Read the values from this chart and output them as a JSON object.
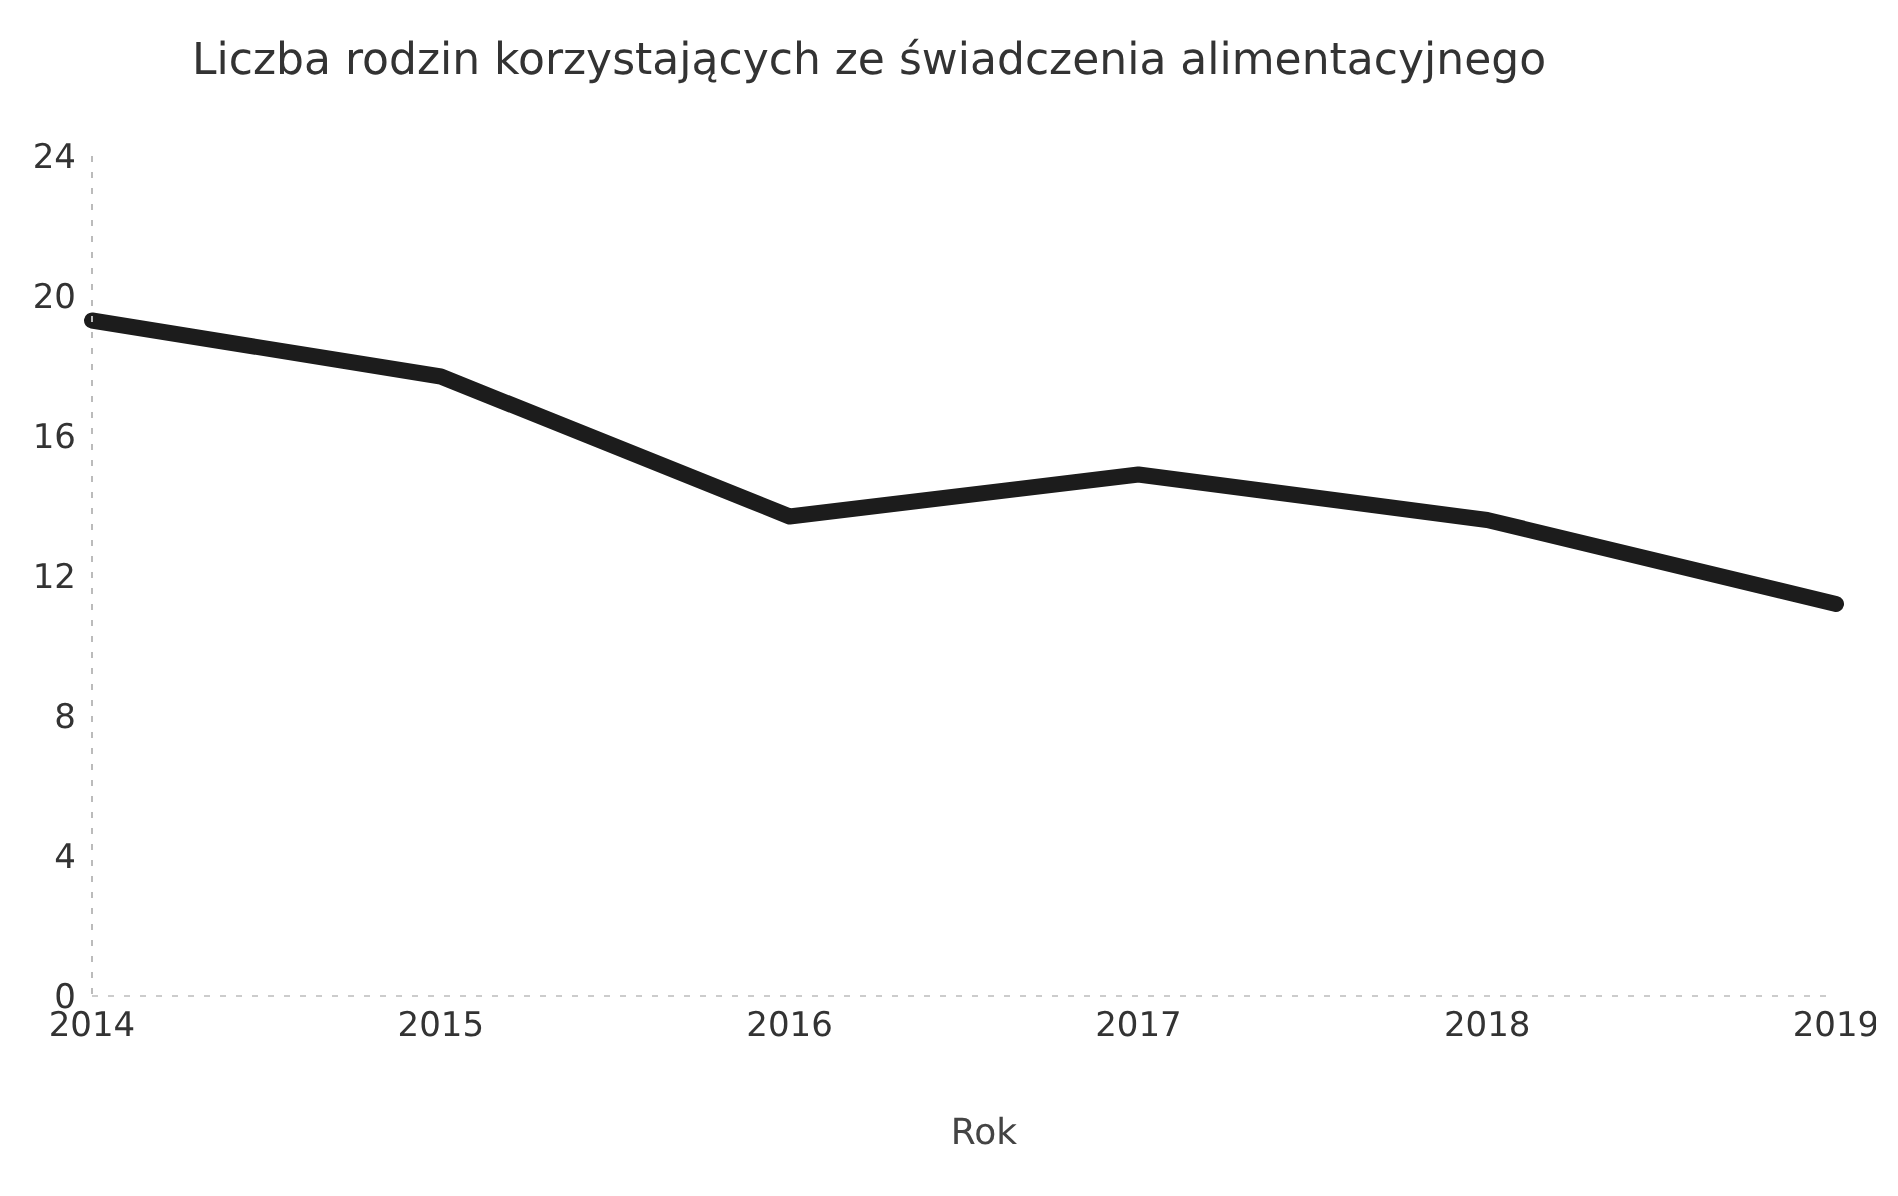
{
  "chart_data": {
    "type": "line",
    "title": "Liczba rodzin korzystających ze świadczenia alimentacyjnego",
    "xlabel": "Rok",
    "categories": [
      "2014",
      "2015",
      "2016",
      "2017",
      "2018",
      "2019"
    ],
    "series": [
      {
        "color": "#1c1c1c",
        "values": [
          19.3,
          17.7,
          13.7,
          14.9,
          13.6,
          11.2
        ]
      }
    ],
    "ylim": [
      0,
      24
    ],
    "yticks": [
      0,
      4,
      8,
      12,
      16,
      20,
      24
    ],
    "grid": false,
    "legend": false,
    "marker": "none",
    "line_style": "solid"
  }
}
